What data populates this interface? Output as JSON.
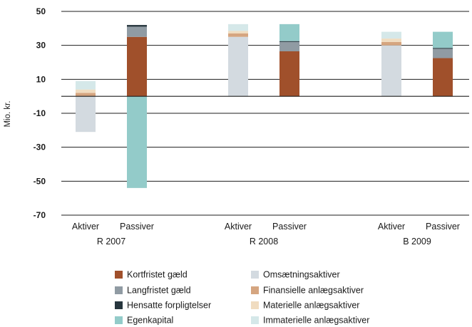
{
  "chart_data": {
    "type": "bar",
    "stacked": true,
    "ylabel": "Mio. kr.",
    "ylim": [
      -70,
      50
    ],
    "yticks": [
      50,
      30,
      10,
      -10,
      -30,
      -50,
      -70
    ],
    "grid": true,
    "groups": [
      {
        "label": "R 2007",
        "bars": [
          {
            "label": "Aktiver",
            "segments": [
              {
                "series": "Omsætningsaktiver",
                "value": -21
              },
              {
                "series": "Finansielle anlægsaktiver",
                "value": 2
              },
              {
                "series": "Materielle anlægsaktiver",
                "value": 2
              },
              {
                "series": "Immaterielle anlægsaktiver",
                "value": 5
              }
            ]
          },
          {
            "label": "Passiver",
            "segments": [
              {
                "series": "Egenkapital",
                "value": -54
              },
              {
                "series": "Kortfristet gæld",
                "value": 35
              },
              {
                "series": "Langfristet gæld",
                "value": 6
              },
              {
                "series": "Hensatte forpligtelser",
                "value": 1
              }
            ]
          }
        ]
      },
      {
        "label": "R 2008",
        "bars": [
          {
            "label": "Aktiver",
            "segments": [
              {
                "series": "Omsætningsaktiver",
                "value": 35
              },
              {
                "series": "Finansielle anlægsaktiver",
                "value": 2
              },
              {
                "series": "Materielle anlægsaktiver",
                "value": 1.5
              },
              {
                "series": "Immaterielle anlægsaktiver",
                "value": 4
              }
            ]
          },
          {
            "label": "Passiver",
            "segments": [
              {
                "series": "Kortfristet gæld",
                "value": 26.5
              },
              {
                "series": "Langfristet gæld",
                "value": 5.5
              },
              {
                "series": "Hensatte forpligtelser",
                "value": 0.5
              },
              {
                "series": "Egenkapital",
                "value": 10
              }
            ]
          }
        ]
      },
      {
        "label": "B 2009",
        "bars": [
          {
            "label": "Aktiver",
            "segments": [
              {
                "series": "Omsætningsaktiver",
                "value": 30
              },
              {
                "series": "Finansielle anlægsaktiver",
                "value": 2
              },
              {
                "series": "Materielle anlægsaktiver",
                "value": 2
              },
              {
                "series": "Immaterielle anlægsaktiver",
                "value": 4
              }
            ]
          },
          {
            "label": "Passiver",
            "segments": [
              {
                "series": "Kortfristet gæld",
                "value": 22.5
              },
              {
                "series": "Langfristet gæld",
                "value": 5.5
              },
              {
                "series": "Hensatte forpligtelser",
                "value": 0.5
              },
              {
                "series": "Egenkapital",
                "value": 9.5
              }
            ]
          }
        ]
      }
    ],
    "legend": {
      "left": [
        "Kortfristet gæld",
        "Langfristet gæld",
        "Hensatte forpligtelser",
        "Egenkapital"
      ],
      "right": [
        "Omsætningsaktiver",
        "Finansielle anlægsaktiver",
        "Materielle anlægsaktiver",
        "Immaterielle anlægsaktiver"
      ]
    },
    "colors": {
      "Kortfristet gæld": "#a0502b",
      "Langfristet gæld": "#909ba3",
      "Hensatte forpligtelser": "#27363e",
      "Egenkapital": "#93cbc9",
      "Omsætningsaktiver": "#d3dae0",
      "Finansielle anlægsaktiver": "#d5a580",
      "Materielle anlægsaktiver": "#f0dcc0",
      "Immaterielle anlægsaktiver": "#d5e8e9"
    }
  }
}
